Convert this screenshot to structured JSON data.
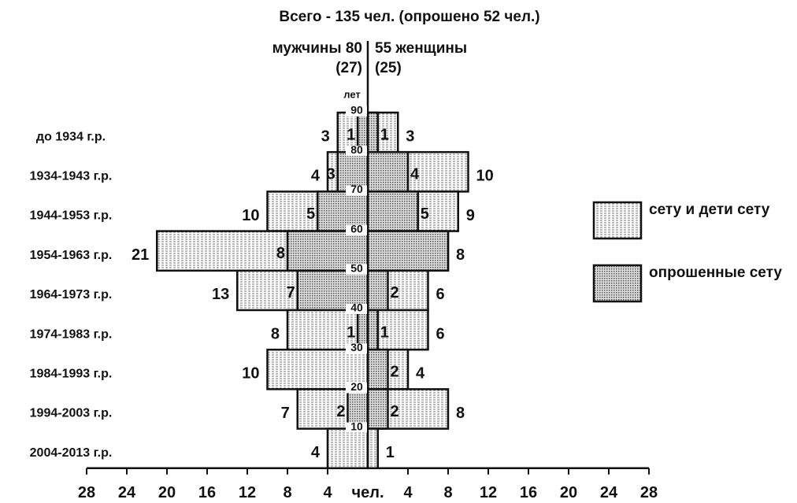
{
  "chart_data": {
    "type": "pyramid",
    "title": "Всего - 135 чел. (опрошено 52 чел.)",
    "left_title": "мужчины 80",
    "right_title": "55 женщины",
    "left_subtitle": "(27)",
    "right_subtitle": "(25)",
    "categories": [
      "до 1934 г.р.",
      "1934-1943 г.р.",
      "1944-1953 г.р.",
      "1954-1963 г.р.",
      "1964-1973 г.р.",
      "1974-1983 г.р.",
      "1984-1993 г.р.",
      "1994-2003 г.р.",
      "2004-2013 г.р."
    ],
    "age_axis": {
      "title": "лет",
      "ticks": [
        90,
        80,
        70,
        60,
        50,
        40,
        30,
        20,
        10
      ]
    },
    "x_center_label": "чел.",
    "xlim": [
      0,
      28
    ],
    "xticks": [
      4,
      8,
      12,
      16,
      20,
      24,
      28
    ],
    "legend": [
      {
        "name": "сету и дети сету",
        "pattern": "light"
      },
      {
        "name": "опрошенные сету",
        "pattern": "dark"
      }
    ],
    "men": {
      "total": [
        3,
        4,
        10,
        21,
        13,
        8,
        10,
        7,
        4
      ],
      "surveyed": [
        1,
        3,
        5,
        8,
        7,
        1,
        0,
        2,
        0
      ],
      "surveyed_labels": [
        "1",
        "3",
        "5",
        "8",
        "7",
        "1",
        null,
        "2",
        null
      ]
    },
    "women": {
      "total": [
        3,
        10,
        9,
        8,
        6,
        6,
        4,
        8,
        1
      ],
      "surveyed": [
        1,
        4,
        5,
        8,
        2,
        1,
        2,
        2,
        0
      ],
      "surveyed_labels": [
        "1",
        "4",
        "5",
        null,
        "2",
        "1",
        "2",
        "2",
        null
      ]
    }
  }
}
